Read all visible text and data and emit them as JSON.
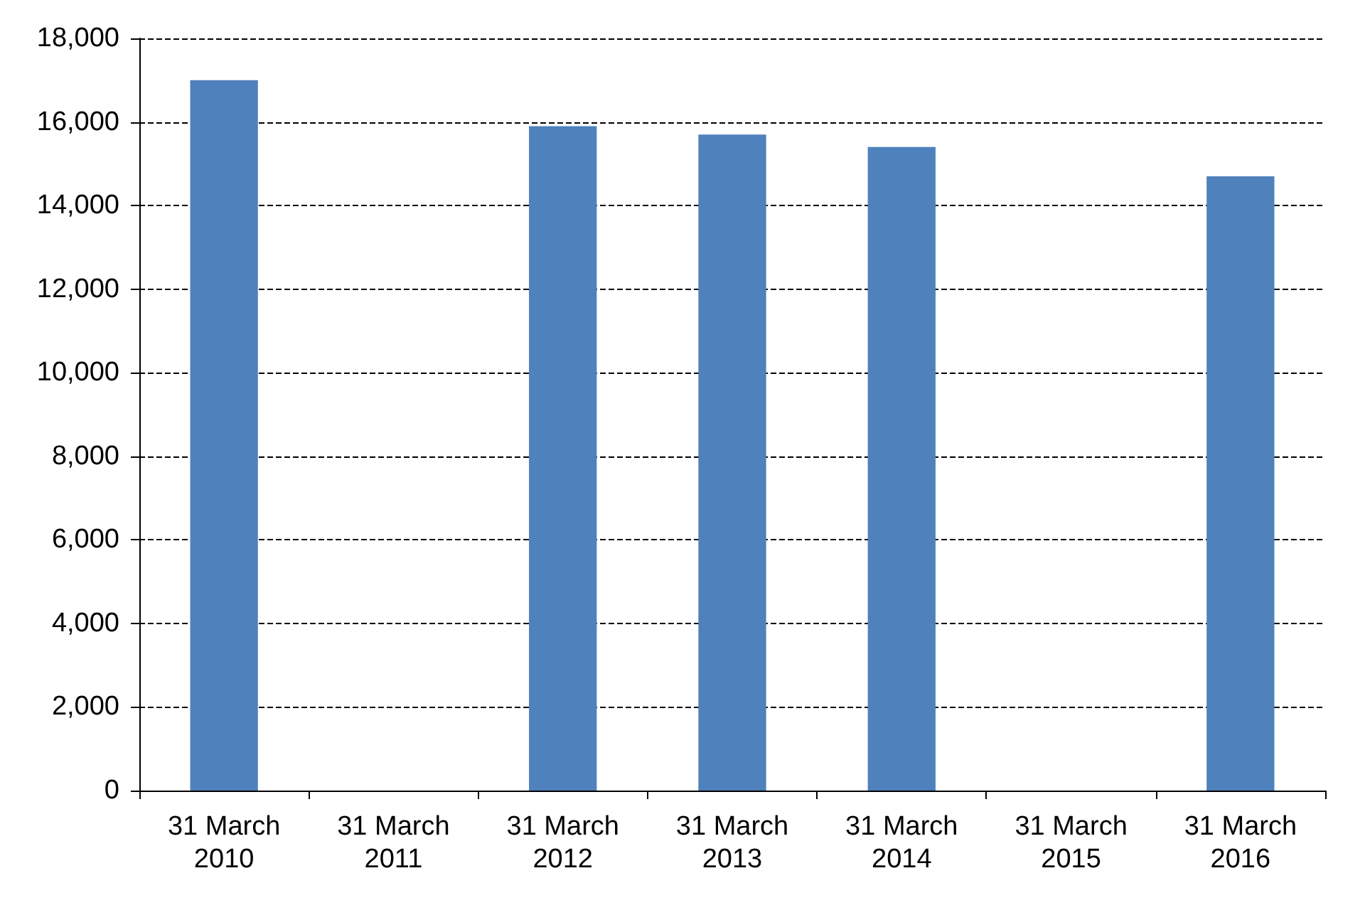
{
  "chart_data": {
    "type": "bar",
    "categories": [
      "31 March\n2010",
      "31 March\n2011",
      "31 March\n2012",
      "31 March\n2013",
      "31 March\n2014",
      "31 March\n2015",
      "31 March\n2016"
    ],
    "values": [
      17000,
      null,
      15900,
      15700,
      15400,
      null,
      14700
    ],
    "color": "#4f81bd",
    "ylim": [
      0,
      18000
    ],
    "yticks": [
      0,
      {
        "value": 2000,
        "label": "2,000"
      },
      {
        "value": 4000,
        "label": "4,000"
      },
      {
        "value": 6000,
        "label": "6,000"
      },
      {
        "value": 8000,
        "label": "8,000"
      },
      {
        "value": 10000,
        "label": "10,000"
      },
      {
        "value": 12000,
        "label": "12,000"
      },
      {
        "value": 14000,
        "label": "14,000"
      },
      {
        "value": 16000,
        "label": "16,000"
      },
      {
        "value": 18000,
        "label": "18,000"
      }
    ],
    "grid": "y",
    "line_style": "dashed"
  }
}
